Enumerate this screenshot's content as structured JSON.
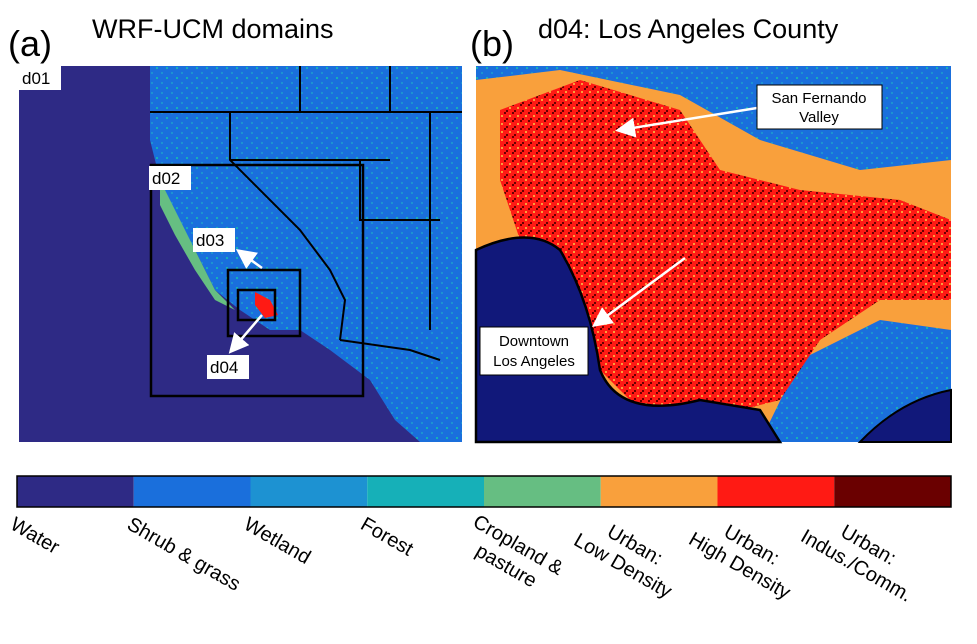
{
  "panel_a": {
    "label": "(a)",
    "title": "WRF-UCM domains",
    "domains": [
      "d01",
      "d02",
      "d03",
      "d04"
    ]
  },
  "panel_b": {
    "label": "(b)",
    "title": "d04: Los Angeles County",
    "annotations": [
      [
        "San Fernando",
        "Valley"
      ],
      [
        "Downtown",
        "Los Angeles"
      ]
    ]
  },
  "legend": {
    "items": [
      {
        "lines": [
          "Water"
        ],
        "color": "#2e2a85"
      },
      {
        "lines": [
          "Shrub & grass"
        ],
        "color": "#1a6fdc"
      },
      {
        "lines": [
          "Wetland"
        ],
        "color": "#1d92d2"
      },
      {
        "lines": [
          "Forest"
        ],
        "color": "#16b0b8"
      },
      {
        "lines": [
          "Cropland &",
          "pasture"
        ],
        "color": "#66be82"
      },
      {
        "lines": [
          "Urban:",
          "Low Density"
        ],
        "color": "#f9a03c"
      },
      {
        "lines": [
          "Urban:",
          "High Density"
        ],
        "color": "#ff1a14"
      },
      {
        "lines": [
          "Urban:",
          "Indus./Comm."
        ],
        "color": "#6a0000"
      }
    ]
  }
}
